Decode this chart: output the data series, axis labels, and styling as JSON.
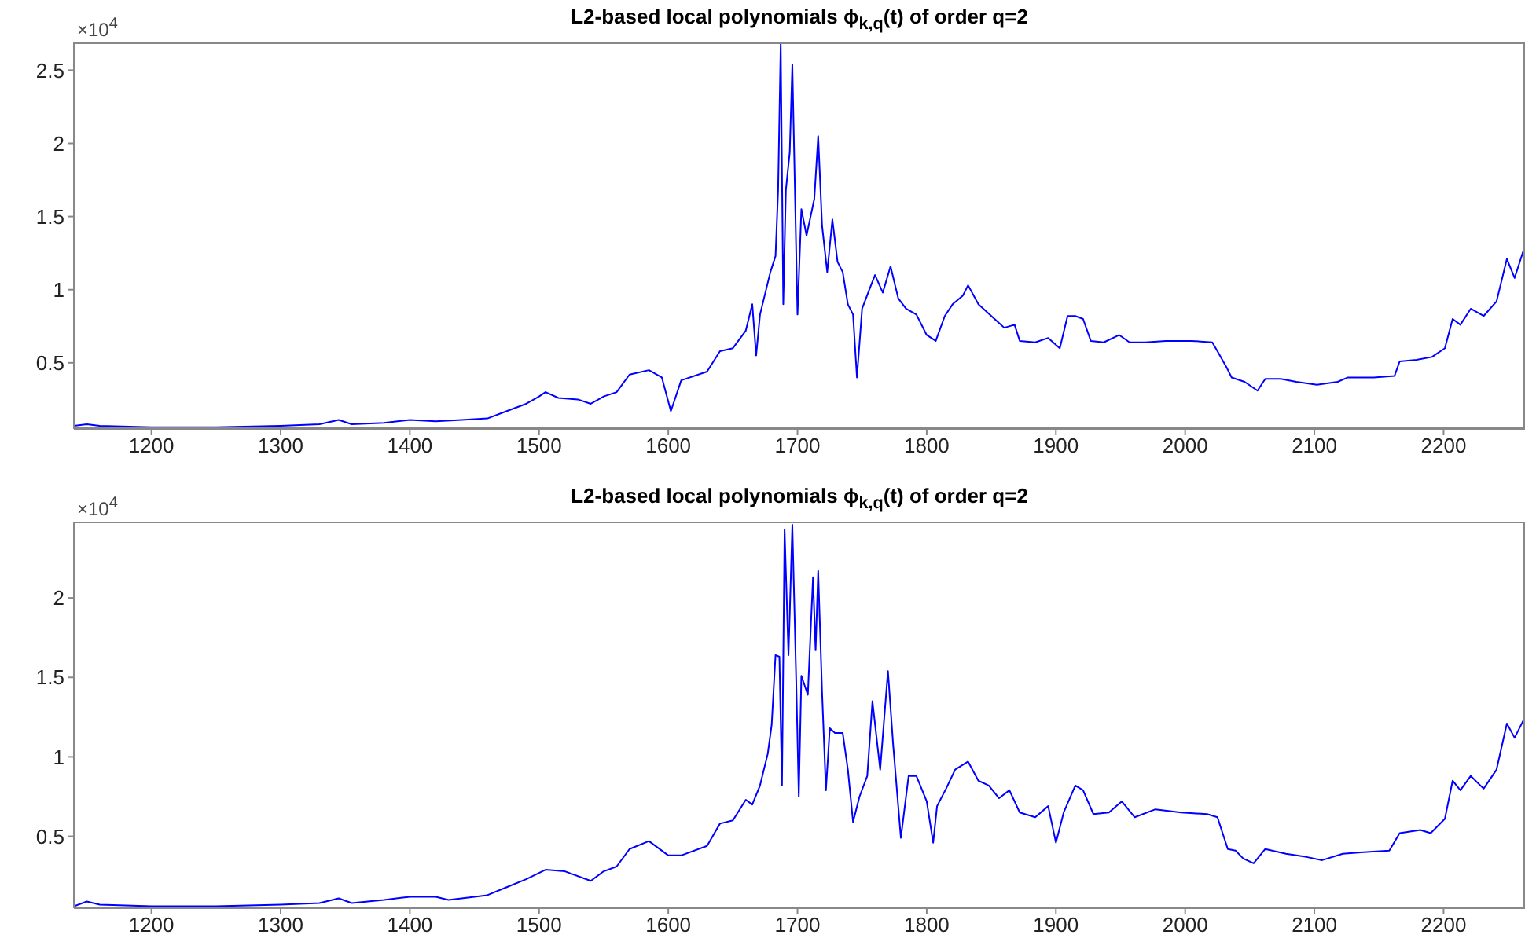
{
  "chart_data": [
    {
      "type": "line",
      "title": "L2-based local polynomials ϕ$_{k,q}$(t) of order q=2",
      "annotations": [
        "×10$^{4}$"
      ],
      "marker": "none",
      "line_style": "solid",
      "xlim": [
        1140,
        2263
      ],
      "xticks": [
        1200,
        1300,
        1400,
        1500,
        1600,
        1700,
        1800,
        1900,
        2000,
        2100,
        2200
      ],
      "ylim": [
        0.048,
        2.69
      ],
      "yticks": [
        0.5,
        1,
        1.5,
        2,
        2.5
      ],
      "x": [
        1140,
        1150,
        1160,
        1200,
        1250,
        1300,
        1330,
        1345,
        1355,
        1380,
        1400,
        1420,
        1440,
        1460,
        1475,
        1490,
        1500,
        1505,
        1515,
        1530,
        1540,
        1550,
        1560,
        1570,
        1585,
        1595,
        1602,
        1610,
        1630,
        1640,
        1650,
        1660,
        1665,
        1668,
        1671,
        1679,
        1683,
        1685,
        1687,
        1689,
        1691,
        1694,
        1696,
        1700,
        1703,
        1707,
        1713,
        1716,
        1719,
        1723,
        1727,
        1731,
        1735,
        1739,
        1743,
        1746,
        1750,
        1756,
        1760,
        1766,
        1772,
        1778,
        1784,
        1792,
        1800,
        1807,
        1814,
        1820,
        1828,
        1832,
        1840,
        1850,
        1860,
        1868,
        1872,
        1884,
        1894,
        1903,
        1909,
        1915,
        1921,
        1927,
        1937,
        1949,
        1957,
        1969,
        1985,
        2005,
        2021,
        2025,
        2032,
        2036,
        2046,
        2056,
        2062,
        2074,
        2086,
        2102,
        2118,
        2126,
        2146,
        2162,
        2166,
        2179,
        2191,
        2201,
        2207,
        2213,
        2221,
        2231,
        2241,
        2249,
        2255,
        2263
      ],
      "series": [
        {
          "color": "#0000ff",
          "values": [
            0.07,
            0.08,
            0.07,
            0.06,
            0.06,
            0.07,
            0.08,
            0.11,
            0.08,
            0.09,
            0.11,
            0.1,
            0.11,
            0.12,
            0.17,
            0.22,
            0.27,
            0.3,
            0.26,
            0.25,
            0.22,
            0.27,
            0.3,
            0.42,
            0.45,
            0.4,
            0.17,
            0.38,
            0.44,
            0.58,
            0.6,
            0.72,
            0.9,
            0.55,
            0.83,
            1.12,
            1.23,
            1.68,
            2.68,
            0.9,
            1.68,
            1.94,
            2.54,
            0.83,
            1.55,
            1.37,
            1.62,
            2.05,
            1.44,
            1.12,
            1.48,
            1.19,
            1.12,
            0.9,
            0.83,
            0.4,
            0.87,
            1.01,
            1.1,
            0.98,
            1.16,
            0.94,
            0.87,
            0.83,
            0.69,
            0.65,
            0.82,
            0.9,
            0.96,
            1.03,
            0.9,
            0.82,
            0.74,
            0.76,
            0.65,
            0.64,
            0.67,
            0.6,
            0.82,
            0.82,
            0.8,
            0.65,
            0.64,
            0.69,
            0.64,
            0.64,
            0.65,
            0.65,
            0.64,
            0.58,
            0.47,
            0.4,
            0.37,
            0.31,
            0.39,
            0.39,
            0.37,
            0.35,
            0.37,
            0.4,
            0.4,
            0.41,
            0.51,
            0.52,
            0.54,
            0.6,
            0.8,
            0.76,
            0.87,
            0.82,
            0.92,
            1.21,
            1.08,
            1.3
          ]
        }
      ]
    },
    {
      "type": "line",
      "title": "L2-based local polynomials ϕ$_{k,q}$(t) of order q=2",
      "annotations": [
        "×10$^{4}$"
      ],
      "marker": "none",
      "line_style": "solid",
      "xlim": [
        1140,
        2263
      ],
      "xticks": [
        1200,
        1300,
        1400,
        1500,
        1600,
        1700,
        1800,
        1900,
        2000,
        2100,
        2200
      ],
      "ylim": [
        0.048,
        2.48
      ],
      "yticks": [
        0.5,
        1,
        1.5,
        2
      ],
      "x": [
        1140,
        1150,
        1160,
        1200,
        1250,
        1300,
        1330,
        1345,
        1355,
        1380,
        1400,
        1420,
        1430,
        1460,
        1475,
        1490,
        1505,
        1520,
        1540,
        1550,
        1560,
        1570,
        1585,
        1600,
        1610,
        1630,
        1640,
        1650,
        1660,
        1665,
        1671,
        1677,
        1680,
        1683,
        1686,
        1688,
        1690,
        1693,
        1694,
        1696,
        1699,
        1701,
        1703,
        1708,
        1712,
        1714,
        1716,
        1719,
        1722,
        1725,
        1729,
        1735,
        1739,
        1743,
        1748,
        1754,
        1758,
        1764,
        1770,
        1774,
        1780,
        1786,
        1792,
        1800,
        1805,
        1808,
        1815,
        1822,
        1832,
        1840,
        1848,
        1856,
        1864,
        1872,
        1884,
        1894,
        1900,
        1906,
        1915,
        1921,
        1929,
        1941,
        1951,
        1961,
        1977,
        1997,
        2017,
        2025,
        2033,
        2039,
        2045,
        2053,
        2062,
        2078,
        2094,
        2106,
        2122,
        2138,
        2158,
        2166,
        2182,
        2190,
        2201,
        2207,
        2213,
        2221,
        2231,
        2241,
        2249,
        2255,
        2263
      ],
      "series": [
        {
          "color": "#0000ff",
          "values": [
            0.06,
            0.09,
            0.07,
            0.06,
            0.06,
            0.07,
            0.08,
            0.11,
            0.08,
            0.1,
            0.12,
            0.12,
            0.1,
            0.13,
            0.18,
            0.23,
            0.29,
            0.28,
            0.22,
            0.28,
            0.31,
            0.42,
            0.47,
            0.38,
            0.38,
            0.44,
            0.58,
            0.6,
            0.73,
            0.7,
            0.82,
            1.02,
            1.2,
            1.64,
            1.63,
            0.82,
            2.43,
            1.64,
            1.9,
            2.46,
            1.48,
            0.75,
            1.51,
            1.39,
            2.13,
            1.67,
            2.17,
            1.41,
            0.79,
            1.18,
            1.15,
            1.15,
            0.92,
            0.59,
            0.75,
            0.88,
            1.35,
            0.92,
            1.54,
            1.08,
            0.49,
            0.88,
            0.88,
            0.72,
            0.46,
            0.69,
            0.8,
            0.92,
            0.97,
            0.85,
            0.82,
            0.74,
            0.79,
            0.65,
            0.62,
            0.69,
            0.46,
            0.65,
            0.82,
            0.79,
            0.64,
            0.65,
            0.72,
            0.62,
            0.67,
            0.65,
            0.64,
            0.62,
            0.42,
            0.41,
            0.36,
            0.33,
            0.42,
            0.39,
            0.37,
            0.35,
            0.39,
            0.4,
            0.41,
            0.52,
            0.54,
            0.52,
            0.61,
            0.85,
            0.79,
            0.88,
            0.8,
            0.92,
            1.21,
            1.12,
            1.25
          ]
        }
      ]
    }
  ]
}
